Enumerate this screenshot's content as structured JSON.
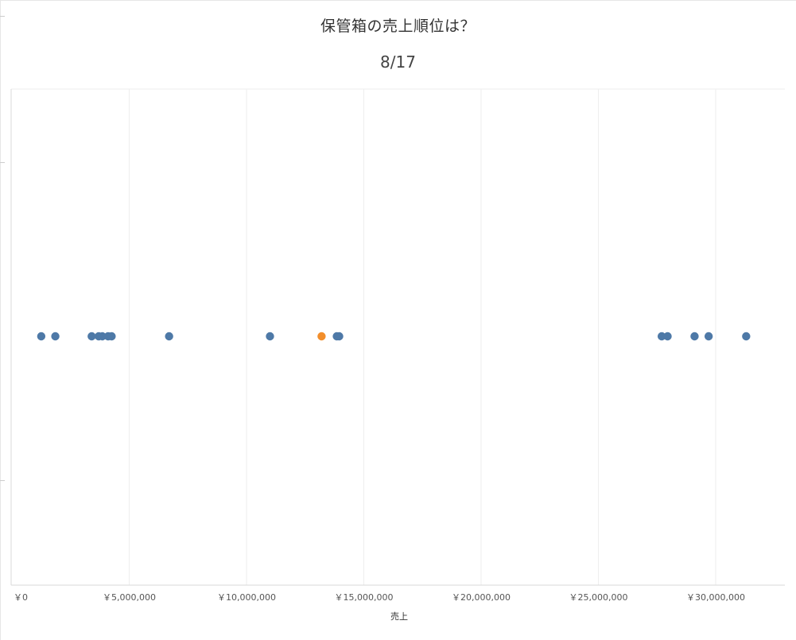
{
  "chart_data": {
    "type": "scatter",
    "title": "保管箱の売上順位は？",
    "subtitle": "8/17",
    "xlabel": "売上",
    "ylabel": "",
    "xlim": [
      0,
      33000000
    ],
    "x_ticks": [
      0,
      5000000,
      10000000,
      15000000,
      20000000,
      25000000,
      30000000
    ],
    "x_tick_labels": [
      "￥0",
      "￥5,000,000",
      "￥10,000,000",
      "￥15,000,000",
      "￥20,000,000",
      "￥25,000,000",
      "￥30,000,000"
    ],
    "grid": "vertical",
    "series": [
      {
        "values": [
          1250000,
          1850000,
          3400000,
          3700000,
          3850000,
          4100000,
          4250000,
          6700000,
          11000000,
          13850000,
          13950000,
          27700000,
          27950000,
          29100000,
          29700000,
          31300000
        ],
        "color": "#4e79a7"
      },
      {
        "values": [
          13200000
        ],
        "color": "#f28e2b"
      }
    ]
  }
}
